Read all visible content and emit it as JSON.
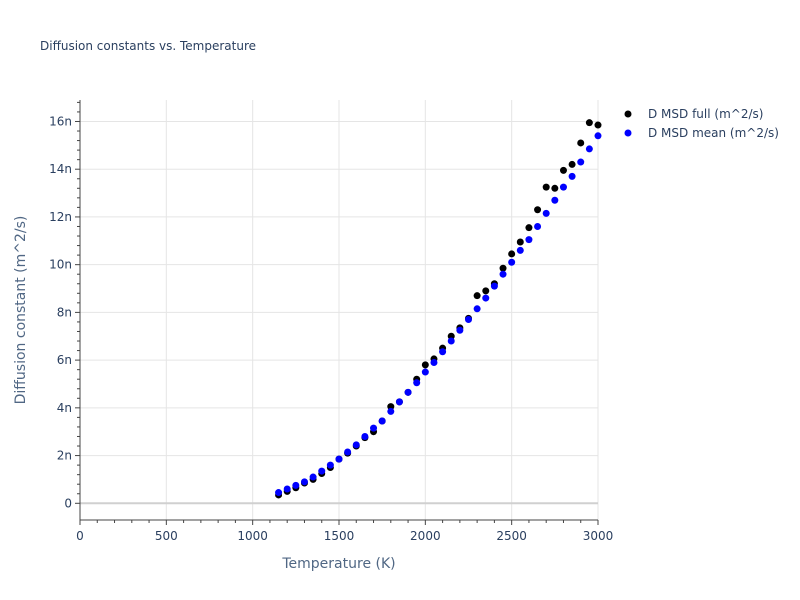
{
  "chart_data": {
    "type": "scatter",
    "title": "Diffusion constants vs. Temperature",
    "xlabel": "Temperature (K)",
    "ylabel": "Diffusion constant (m^2/s)",
    "xlim": [
      0,
      3000
    ],
    "ylim": [
      -0.7,
      16.9
    ],
    "y_unit_suffix": "n",
    "x_ticks": [
      0,
      500,
      1000,
      1500,
      2000,
      2500,
      3000
    ],
    "y_ticks": [
      0,
      2,
      4,
      6,
      8,
      10,
      12,
      14,
      16
    ],
    "grid": true,
    "legend_position": "top-right outside",
    "x": [
      1150,
      1200,
      1250,
      1300,
      1350,
      1400,
      1450,
      1500,
      1550,
      1600,
      1650,
      1700,
      1750,
      1800,
      1850,
      1900,
      1950,
      2000,
      2050,
      2100,
      2150,
      2200,
      2250,
      2300,
      2350,
      2400,
      2450,
      2500,
      2550,
      2600,
      2650,
      2700,
      2750,
      2800,
      2850,
      2900,
      2950,
      3000
    ],
    "series": [
      {
        "name": "D MSD full (m^2/s)",
        "color": "#000000",
        "values": [
          0.35,
          0.5,
          0.65,
          0.85,
          1.0,
          1.25,
          1.5,
          1.85,
          2.1,
          2.4,
          2.75,
          3.0,
          3.45,
          4.05,
          4.25,
          4.65,
          5.2,
          5.8,
          6.05,
          6.5,
          7.0,
          7.35,
          7.75,
          8.7,
          8.9,
          9.2,
          9.85,
          10.45,
          10.95,
          11.55,
          12.3,
          13.25,
          13.2,
          13.95,
          14.2,
          15.1,
          15.95,
          15.85
        ]
      },
      {
        "name": "D MSD mean (m^2/s)",
        "color": "#0000ff",
        "values": [
          0.45,
          0.6,
          0.75,
          0.9,
          1.1,
          1.35,
          1.6,
          1.85,
          2.15,
          2.45,
          2.8,
          3.15,
          3.45,
          3.85,
          4.25,
          4.65,
          5.05,
          5.5,
          5.9,
          6.35,
          6.8,
          7.25,
          7.7,
          8.15,
          8.6,
          9.1,
          9.6,
          10.1,
          10.6,
          11.05,
          11.6,
          12.15,
          12.7,
          13.25,
          13.7,
          14.3,
          14.85,
          15.4
        ]
      }
    ]
  }
}
